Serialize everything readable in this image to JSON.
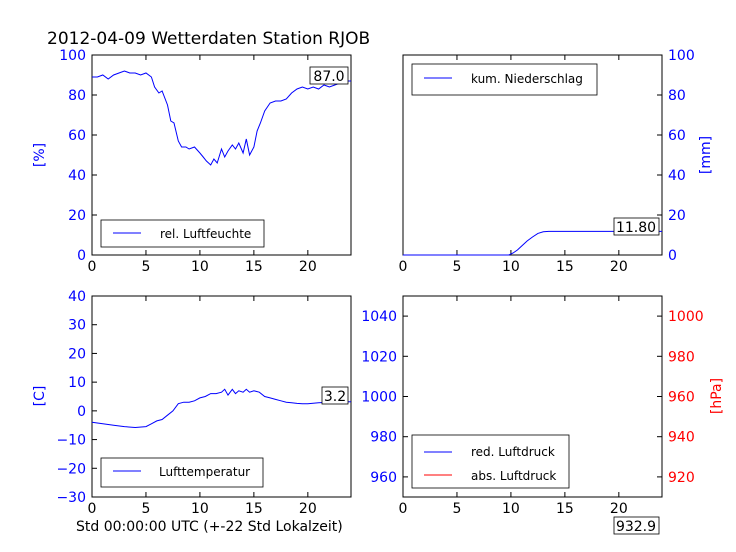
{
  "title": "2012-04-09 Wetterdaten Station RJOB",
  "footer_label": "Std 00:00:00 UTC (+-22 Std Lokalzeit)",
  "colors": {
    "blue": "#0000ff",
    "red": "#ff0000",
    "black": "#000000"
  },
  "chart_data": [
    {
      "type": "line",
      "id": "humidity",
      "ylabel": "[%]",
      "xlim": [
        0,
        24
      ],
      "ylim": [
        0,
        100
      ],
      "xticks": [
        "0",
        "5",
        "10",
        "15",
        "20"
      ],
      "yticks": [
        "0",
        "20",
        "40",
        "60",
        "80",
        "100"
      ],
      "legend": "rel. Luftfeuchte",
      "legend_position": "lower-left",
      "last_value_label": "87.0",
      "grid": false,
      "series": [
        {
          "name": "rel. Luftfeuchte",
          "color": "#0000ff",
          "x": [
            0,
            0.5,
            1,
            1.5,
            2,
            2.5,
            3,
            3.5,
            4,
            4.5,
            5,
            5.5,
            5.8,
            6.2,
            6.5,
            7,
            7.3,
            7.6,
            8,
            8.3,
            8.7,
            9,
            9.5,
            10,
            10.3,
            10.6,
            11,
            11.3,
            11.6,
            12,
            12.3,
            12.6,
            13,
            13.3,
            13.6,
            14,
            14.3,
            14.6,
            15,
            15.3,
            15.6,
            16,
            16.5,
            17,
            17.5,
            18,
            18.5,
            19,
            19.5,
            20,
            20.5,
            21,
            21.5,
            22,
            22.5,
            23,
            23.5,
            24
          ],
          "y": [
            89,
            89,
            90,
            88,
            90,
            91,
            92,
            91,
            91,
            90,
            91,
            89,
            84,
            81,
            82,
            75,
            67,
            66,
            57,
            54,
            54,
            53,
            54,
            51,
            49,
            47,
            45,
            48,
            46,
            53,
            49,
            52,
            55,
            53,
            56,
            51,
            58,
            50,
            54,
            62,
            66,
            72,
            76,
            77,
            77,
            78,
            81,
            83,
            84,
            83,
            84,
            83,
            85,
            84,
            85,
            86,
            87,
            87
          ]
        }
      ]
    },
    {
      "type": "line",
      "id": "precip",
      "ylabel": "[mm]",
      "xlim": [
        0,
        24
      ],
      "ylim": [
        0,
        100
      ],
      "xticks": [
        "0",
        "5",
        "10",
        "15",
        "20"
      ],
      "yticks": [
        "0",
        "20",
        "40",
        "60",
        "80",
        "100"
      ],
      "legend": "kum. Niederschlag",
      "legend_position": "upper-left",
      "last_value_label": "11.80",
      "grid": false,
      "series": [
        {
          "name": "kum. Niederschlag",
          "color": "#0000ff",
          "x": [
            0,
            9.8,
            10.2,
            10.6,
            11,
            11.5,
            12,
            12.5,
            13,
            13.5,
            14,
            16,
            20,
            24
          ],
          "y": [
            0,
            0,
            1,
            2.5,
            4.5,
            7,
            9,
            10.8,
            11.6,
            11.8,
            11.8,
            11.8,
            11.8,
            11.8
          ]
        }
      ]
    },
    {
      "type": "line",
      "id": "temperature",
      "ylabel": "[C]",
      "xlim": [
        0,
        24
      ],
      "ylim": [
        -30,
        40
      ],
      "xticks": [
        "0",
        "5",
        "10",
        "15",
        "20"
      ],
      "yticks": [
        "−30",
        "−20",
        "−10",
        "0",
        "10",
        "20",
        "30",
        "40"
      ],
      "legend": "Lufttemperatur",
      "legend_position": "lower-left",
      "last_value_label": "3.2",
      "grid": false,
      "series": [
        {
          "name": "Lufttemperatur",
          "color": "#0000ff",
          "x": [
            0,
            1,
            2,
            3,
            4,
            5,
            5.5,
            6,
            6.5,
            7,
            7.5,
            8,
            8.5,
            9,
            9.5,
            10,
            10.5,
            11,
            11.5,
            12,
            12.3,
            12.6,
            13,
            13.3,
            13.6,
            14,
            14.3,
            14.6,
            15,
            15.5,
            16,
            16.5,
            17,
            17.5,
            18,
            18.5,
            19,
            19.5,
            20,
            21,
            22,
            23,
            24
          ],
          "y": [
            -4,
            -4.5,
            -5,
            -5.5,
            -5.8,
            -5.5,
            -4.5,
            -3.5,
            -3,
            -1.5,
            0,
            2.5,
            3,
            3,
            3.5,
            4.5,
            5,
            6,
            6,
            6.5,
            7.5,
            5.5,
            7.5,
            6,
            7,
            6.5,
            7.5,
            6.5,
            7,
            6.5,
            5,
            4.5,
            4,
            3.5,
            3,
            2.8,
            2.6,
            2.5,
            2.5,
            2.8,
            3,
            3.1,
            3.2
          ]
        }
      ]
    },
    {
      "type": "line",
      "id": "pressure",
      "ylabel": "[hPa]",
      "xlim": [
        0,
        24
      ],
      "ylim_left": [
        950,
        1050
      ],
      "ylim_right": [
        910,
        1010
      ],
      "xticks": [
        "0",
        "5",
        "10",
        "15",
        "20"
      ],
      "yticks_left": [
        "960",
        "980",
        "1000",
        "1020",
        "1040"
      ],
      "yticks_right": [
        "920",
        "940",
        "960",
        "980",
        "1000"
      ],
      "legend": [
        "red. Luftdruck",
        "abs. Luftdruck"
      ],
      "legend_position": "lower-left",
      "last_value_label": "932.9",
      "grid": false,
      "series": [
        {
          "name": "red. Luftdruck",
          "color": "#0000ff",
          "x": [],
          "y": []
        },
        {
          "name": "abs. Luftdruck",
          "color": "#ff0000",
          "x": [],
          "y": []
        }
      ]
    }
  ]
}
